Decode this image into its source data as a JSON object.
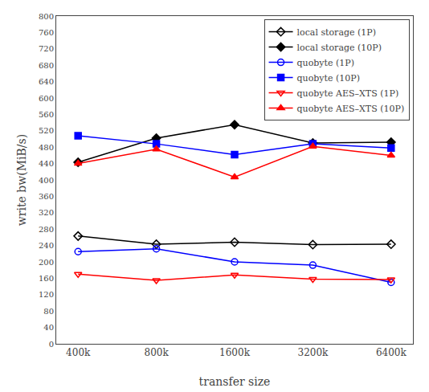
{
  "chart_data": {
    "type": "line",
    "xlabel": "transfer size",
    "ylabel": "write bw(MiB/s)",
    "categories": [
      "400k",
      "800k",
      "1600k",
      "3200k",
      "6400k"
    ],
    "series": [
      {
        "name": "local storage (1P)",
        "color": "black",
        "marker": "diamond-open",
        "values": [
          263,
          243,
          248,
          242,
          243
        ]
      },
      {
        "name": "local storage (10P)",
        "color": "black",
        "marker": "diamond",
        "values": [
          443,
          502,
          535,
          490,
          492
        ]
      },
      {
        "name": "quobyte (1P)",
        "color": "blue",
        "marker": "circle-open",
        "values": [
          225,
          232,
          200,
          192,
          150
        ]
      },
      {
        "name": "quobyte (10P)",
        "color": "blue",
        "marker": "square",
        "values": [
          508,
          488,
          462,
          488,
          478
        ]
      },
      {
        "name": "quobyte AES–XTS (1P)",
        "color": "red",
        "marker": "triangle-down-open",
        "values": [
          170,
          155,
          168,
          158,
          157
        ]
      },
      {
        "name": "quobyte AES–XTS (10P)",
        "color": "red",
        "marker": "triangle-up",
        "values": [
          440,
          475,
          407,
          482,
          460
        ]
      }
    ],
    "ylim": [
      0,
      800
    ],
    "yticks": [
      0,
      40,
      80,
      120,
      160,
      200,
      240,
      280,
      320,
      360,
      400,
      440,
      480,
      520,
      560,
      600,
      640,
      680,
      720,
      760,
      800
    ],
    "legend": "upper right",
    "grid": false
  }
}
